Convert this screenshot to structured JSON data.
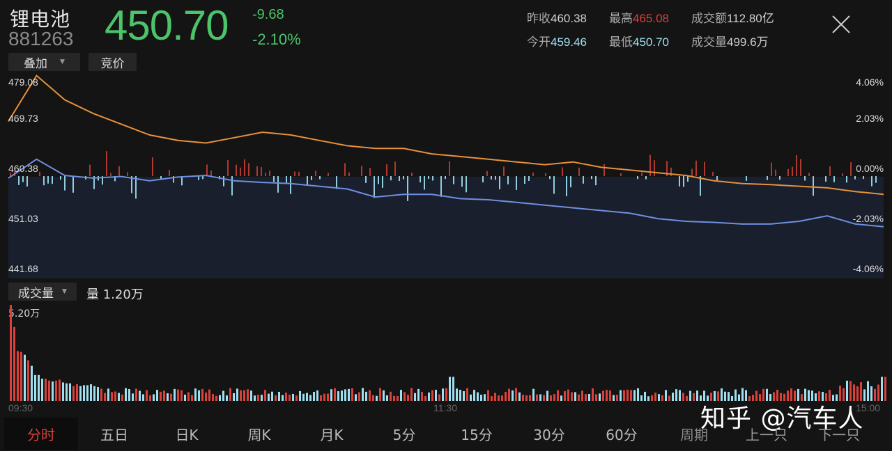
{
  "header": {
    "name": "锂电池",
    "code": "881263",
    "price": "450.70",
    "change": "-9.68",
    "change_pct": "-2.10%",
    "overlay_button": "叠加",
    "auction_button": "竞价",
    "close_icon": "close-icon"
  },
  "stats": {
    "prev_close_label": "昨收",
    "prev_close": "460.38",
    "high_label": "最高",
    "high": "465.08",
    "turnover_label": "成交额",
    "turnover": "112.80亿",
    "open_label": "今开",
    "open": "459.46",
    "low_label": "最低",
    "low": "450.70",
    "volume_label": "成交量",
    "volume": "499.6万"
  },
  "price_axis": {
    "left": [
      "479.08",
      "469.73",
      "460.38",
      "451.03",
      "441.68"
    ],
    "right": [
      "4.06%",
      "2.03%",
      "0.00%",
      "-2.03%",
      "-4.06%"
    ]
  },
  "volume_panel": {
    "dropdown": "成交量",
    "label": "量 1.20万",
    "max": "5.20万"
  },
  "time_axis": [
    "09:30",
    "11:30",
    "15:00"
  ],
  "tabs": [
    {
      "label": "分时",
      "active": true
    },
    {
      "label": "五日"
    },
    {
      "label": "日K"
    },
    {
      "label": "周K"
    },
    {
      "label": "月K"
    },
    {
      "label": "5分"
    },
    {
      "label": "15分"
    },
    {
      "label": "30分"
    },
    {
      "label": "60分"
    },
    {
      "label": "周期"
    },
    {
      "label": "上一只"
    },
    {
      "label": "下一只"
    }
  ],
  "watermark": "知乎 @汽车人",
  "colors": {
    "up": "#d9413a",
    "down": "#9fe0f0",
    "price_green": "#4cc46a",
    "orange_line": "#e8913a",
    "blue_line": "#6f8fe0",
    "background": "#141414",
    "lower_fill": "#1a1f2e"
  },
  "chart_data": [
    {
      "type": "line",
      "title": "锂电池 分时",
      "xlabel": "",
      "ylabel": "",
      "ylim": [
        441.68,
        479.08
      ],
      "x_ticks": [
        "09:30",
        "11:30",
        "15:00"
      ],
      "series": [
        {
          "name": "orange line",
          "color": "#e8913a",
          "values": [
            470.5,
            479.0,
            474.5,
            472.0,
            470.0,
            468.0,
            467.0,
            466.5,
            467.5,
            468.5,
            468.0,
            467.0,
            466.0,
            465.5,
            465.5,
            464.5,
            464.0,
            463.5,
            463.0,
            462.5,
            463.0,
            462.0,
            461.5,
            461.0,
            460.5,
            459.5,
            459.0,
            458.8,
            458.5,
            458.2,
            457.5,
            457.0
          ]
        },
        {
          "name": "blue line",
          "color": "#6f8fe0",
          "values": [
            460.0,
            463.5,
            460.5,
            460.0,
            460.3,
            459.5,
            460.2,
            460.5,
            459.5,
            459.2,
            459.0,
            458.5,
            458.0,
            456.5,
            457.0,
            457.0,
            456.2,
            456.0,
            455.5,
            455.0,
            454.5,
            454.0,
            453.5,
            452.5,
            452.0,
            451.8,
            451.5,
            451.5,
            452.0,
            453.0,
            451.5,
            451.0
          ]
        }
      ]
    },
    {
      "type": "bar",
      "title": "成交量",
      "ylim": [
        0,
        5.2
      ],
      "ylabel": "万",
      "description": "Volume bars, very tall at open (5.20万), decaying rapidly; mostly small after 10:00 with a spike near 11:30 and rising again near 15:00",
      "values_head": [
        5.2,
        4.0,
        2.7,
        2.65,
        2.5,
        2.2,
        1.9,
        1.4,
        1.4,
        1.2,
        1.2,
        1.1,
        1.05,
        1.1,
        1.15,
        1.0,
        0.95,
        0.95,
        0.8,
        0.9,
        0.8,
        0.85,
        0.85,
        0.9,
        0.8,
        0.75
      ]
    }
  ]
}
